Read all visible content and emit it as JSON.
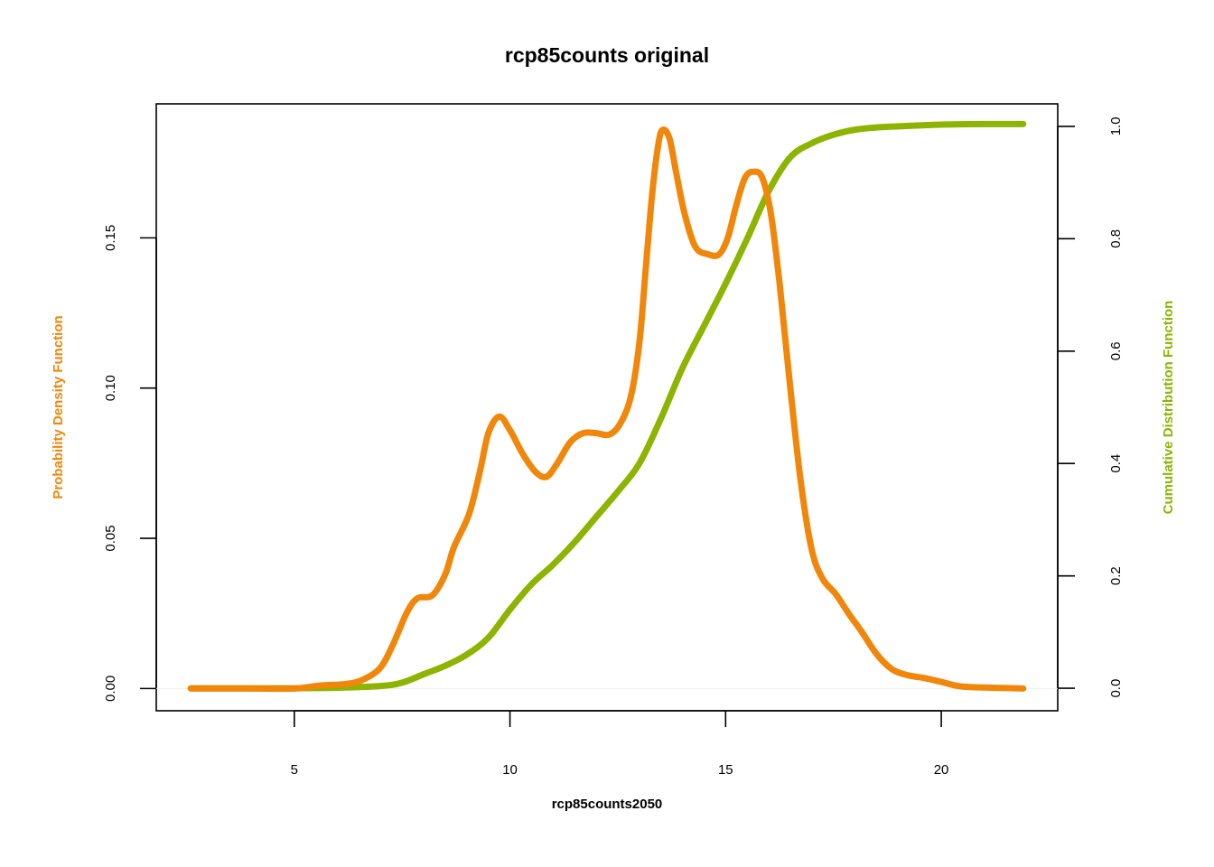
{
  "chart_data": {
    "type": "line",
    "title": "rcp85counts original",
    "xlabel": "rcp85counts2050",
    "ylabel_left": "Probability Density Function",
    "ylabel_right": "Cumulative Distribution Function",
    "xlim": [
      1.8,
      22.7
    ],
    "ylim_left": [
      -0.0074,
      0.1946
    ],
    "ylim_right": [
      -0.04,
      1.04
    ],
    "x_ticks": [
      5,
      10,
      15,
      20
    ],
    "y_left_ticks": [
      0.0,
      0.05,
      0.1,
      0.15
    ],
    "y_left_tick_labels": [
      "0.00",
      "0.05",
      "0.10",
      "0.15"
    ],
    "y_right_ticks": [
      0.0,
      0.2,
      0.4,
      0.6,
      0.8,
      1.0
    ],
    "y_right_tick_labels": [
      "0.0",
      "0.2",
      "0.4",
      "0.6",
      "0.8",
      "1.0"
    ],
    "colors": {
      "pdf": "#f0870a",
      "cdf": "#8cb400"
    },
    "series": [
      {
        "axis": "left",
        "color": "#f0870a",
        "points": [
          [
            2.6,
            0.0
          ],
          [
            4.0,
            0.0
          ],
          [
            5.0,
            0.0
          ],
          [
            5.6,
            0.001
          ],
          [
            6.2,
            0.0015
          ],
          [
            6.6,
            0.003
          ],
          [
            7.0,
            0.007
          ],
          [
            7.3,
            0.015
          ],
          [
            7.6,
            0.025
          ],
          [
            7.85,
            0.03
          ],
          [
            8.2,
            0.031
          ],
          [
            8.5,
            0.038
          ],
          [
            8.7,
            0.047
          ],
          [
            9.05,
            0.058
          ],
          [
            9.3,
            0.072
          ],
          [
            9.5,
            0.085
          ],
          [
            9.75,
            0.0905
          ],
          [
            10.0,
            0.086
          ],
          [
            10.3,
            0.078
          ],
          [
            10.6,
            0.072
          ],
          [
            10.85,
            0.0705
          ],
          [
            11.1,
            0.075
          ],
          [
            11.4,
            0.082
          ],
          [
            11.7,
            0.085
          ],
          [
            12.0,
            0.085
          ],
          [
            12.3,
            0.0845
          ],
          [
            12.55,
            0.088
          ],
          [
            12.8,
            0.097
          ],
          [
            13.0,
            0.115
          ],
          [
            13.15,
            0.14
          ],
          [
            13.3,
            0.165
          ],
          [
            13.45,
            0.182
          ],
          [
            13.55,
            0.186
          ],
          [
            13.7,
            0.183
          ],
          [
            13.85,
            0.172
          ],
          [
            14.05,
            0.158
          ],
          [
            14.3,
            0.147
          ],
          [
            14.6,
            0.1445
          ],
          [
            14.85,
            0.1445
          ],
          [
            15.05,
            0.15
          ],
          [
            15.25,
            0.161
          ],
          [
            15.45,
            0.17
          ],
          [
            15.65,
            0.172
          ],
          [
            15.85,
            0.17
          ],
          [
            16.05,
            0.158
          ],
          [
            16.25,
            0.135
          ],
          [
            16.5,
            0.1
          ],
          [
            16.75,
            0.068
          ],
          [
            17.0,
            0.046
          ],
          [
            17.25,
            0.0365
          ],
          [
            17.55,
            0.0315
          ],
          [
            17.85,
            0.025
          ],
          [
            18.15,
            0.019
          ],
          [
            18.5,
            0.0115
          ],
          [
            18.85,
            0.0065
          ],
          [
            19.2,
            0.0045
          ],
          [
            19.6,
            0.0035
          ],
          [
            20.0,
            0.0022
          ],
          [
            20.4,
            0.0008
          ],
          [
            20.8,
            0.0004
          ],
          [
            21.4,
            0.0002
          ],
          [
            21.9,
            0.0
          ]
        ]
      },
      {
        "axis": "right",
        "color": "#8cb400",
        "points": [
          [
            2.6,
            0.0
          ],
          [
            5.0,
            0.0
          ],
          [
            6.0,
            0.001
          ],
          [
            7.0,
            0.004
          ],
          [
            7.5,
            0.01
          ],
          [
            8.0,
            0.025
          ],
          [
            8.5,
            0.04
          ],
          [
            9.0,
            0.06
          ],
          [
            9.5,
            0.09
          ],
          [
            10.0,
            0.14
          ],
          [
            10.5,
            0.185
          ],
          [
            11.0,
            0.22
          ],
          [
            11.5,
            0.26
          ],
          [
            12.0,
            0.305
          ],
          [
            12.5,
            0.35
          ],
          [
            13.0,
            0.4
          ],
          [
            13.5,
            0.48
          ],
          [
            14.0,
            0.57
          ],
          [
            14.5,
            0.645
          ],
          [
            15.0,
            0.72
          ],
          [
            15.5,
            0.8
          ],
          [
            16.0,
            0.885
          ],
          [
            16.5,
            0.945
          ],
          [
            17.0,
            0.97
          ],
          [
            17.5,
            0.985
          ],
          [
            18.0,
            0.994
          ],
          [
            18.5,
            0.998
          ],
          [
            19.0,
            1.0
          ],
          [
            20.0,
            1.003
          ],
          [
            21.0,
            1.004
          ],
          [
            21.9,
            1.004
          ]
        ]
      }
    ]
  }
}
